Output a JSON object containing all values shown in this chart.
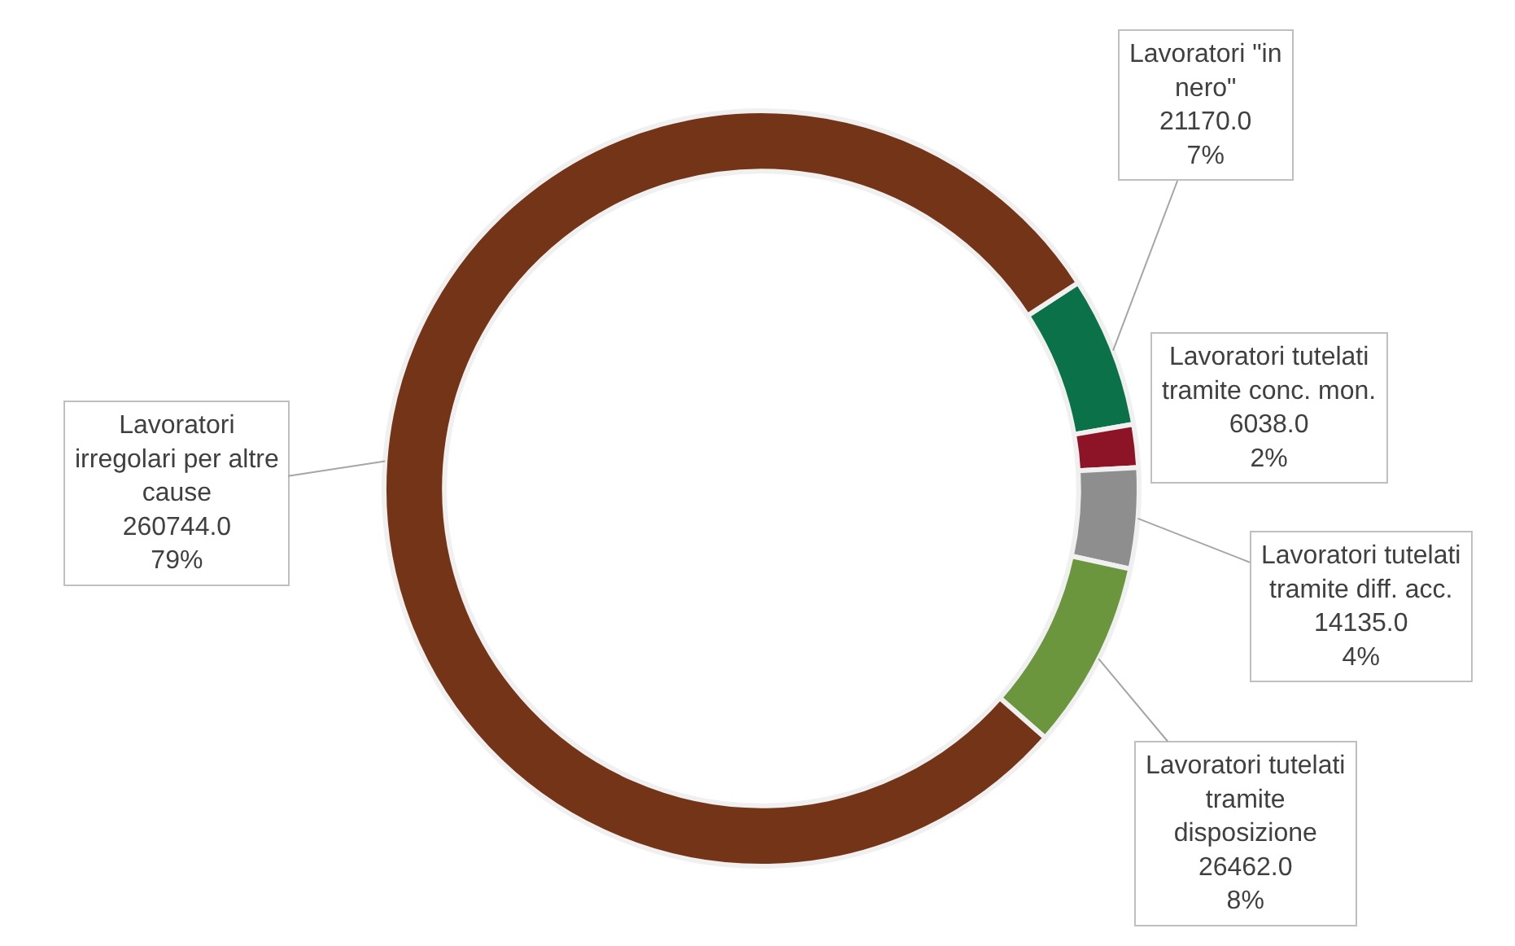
{
  "chart_data": {
    "type": "donut",
    "categories": [
      "Lavoratori \"in nero\"",
      "Lavoratori tutelati tramite conc. mon.",
      "Lavoratori tutelati tramite diff. acc.",
      "Lavoratori tutelati tramite disposizione",
      "Lavoratori irregolari per altre cause"
    ],
    "values": [
      21170,
      6038,
      14135,
      26462,
      260744
    ],
    "colors": [
      "#0b7149",
      "#8c1426",
      "#8e8e8e",
      "#6b963d",
      "#743417"
    ],
    "value_labels": [
      "21170.0\n7%",
      "6038.0\n2%",
      "14135.0\n4%",
      "26462.0\n8%",
      "260744.0\n79%"
    ],
    "legend": false
  }
}
